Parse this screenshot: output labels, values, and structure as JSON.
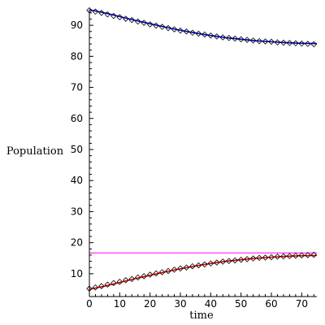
{
  "chart_data": {
    "type": "scatter",
    "title": "",
    "xlabel": "time",
    "ylabel": "Population",
    "xlim": [
      0,
      75
    ],
    "ylim": [
      5,
      95
    ],
    "xticks": [
      0,
      10,
      20,
      30,
      40,
      50,
      60,
      70
    ],
    "yticks": [
      10,
      20,
      30,
      40,
      50,
      60,
      70,
      80,
      90
    ],
    "grid": false,
    "series": [
      {
        "kind": "markers",
        "marker": "diamond",
        "color": "#000000",
        "x": [
          0,
          2,
          4,
          6,
          8,
          10,
          12,
          14,
          16,
          18,
          20,
          22,
          24,
          26,
          28,
          30,
          32,
          34,
          36,
          38,
          40,
          42,
          44,
          46,
          48,
          50,
          52,
          54,
          56,
          58,
          60,
          62,
          64,
          66,
          68,
          70,
          72,
          74
        ],
        "y": [
          94.8,
          94.4,
          94.0,
          93.5,
          93.0,
          92.6,
          92.1,
          91.7,
          91.2,
          90.8,
          90.3,
          89.9,
          89.5,
          89.1,
          88.7,
          88.3,
          88.0,
          87.6,
          87.3,
          87.0,
          86.7,
          86.4,
          86.1,
          85.9,
          85.7,
          85.5,
          85.3,
          85.1,
          84.9,
          84.8,
          84.7,
          84.5,
          84.4,
          84.3,
          84.2,
          84.1,
          84.0,
          83.9
        ]
      },
      {
        "kind": "markers",
        "marker": "diamond",
        "color": "#000000",
        "x": [
          0,
          2,
          4,
          6,
          8,
          10,
          12,
          14,
          16,
          18,
          20,
          22,
          24,
          26,
          28,
          30,
          32,
          34,
          36,
          38,
          40,
          42,
          44,
          46,
          48,
          50,
          52,
          54,
          56,
          58,
          60,
          62,
          64,
          66,
          68,
          70,
          72,
          74
        ],
        "y": [
          5.2,
          5.6,
          6.0,
          6.5,
          7.0,
          7.4,
          7.9,
          8.3,
          8.8,
          9.2,
          9.7,
          10.1,
          10.5,
          10.9,
          11.3,
          11.7,
          12.0,
          12.4,
          12.7,
          13.0,
          13.3,
          13.6,
          13.9,
          14.1,
          14.3,
          14.5,
          14.7,
          14.9,
          15.1,
          15.2,
          15.3,
          15.5,
          15.6,
          15.7,
          15.8,
          15.9,
          16.0,
          16.1
        ]
      },
      {
        "kind": "line",
        "color": "#0000cc",
        "x": [
          0,
          5,
          10,
          15,
          20,
          25,
          30,
          35,
          40,
          45,
          50,
          55,
          60,
          65,
          70,
          75
        ],
        "y": [
          95.0,
          94.0,
          92.8,
          91.6,
          90.5,
          89.4,
          88.4,
          87.5,
          86.7,
          86.0,
          85.5,
          85.0,
          84.7,
          84.4,
          84.2,
          84.1
        ]
      },
      {
        "kind": "line",
        "color": "#dd0000",
        "x": [
          0,
          5,
          10,
          15,
          20,
          25,
          30,
          35,
          40,
          45,
          50,
          55,
          60,
          65,
          70,
          75
        ],
        "y": [
          5.0,
          6.0,
          7.2,
          8.4,
          9.5,
          10.6,
          11.6,
          12.5,
          13.3,
          14.0,
          14.5,
          15.0,
          15.3,
          15.6,
          15.8,
          15.9
        ]
      },
      {
        "kind": "hline",
        "color": "#ff00ff",
        "y": 16.7,
        "x": [
          0,
          75
        ]
      }
    ]
  }
}
